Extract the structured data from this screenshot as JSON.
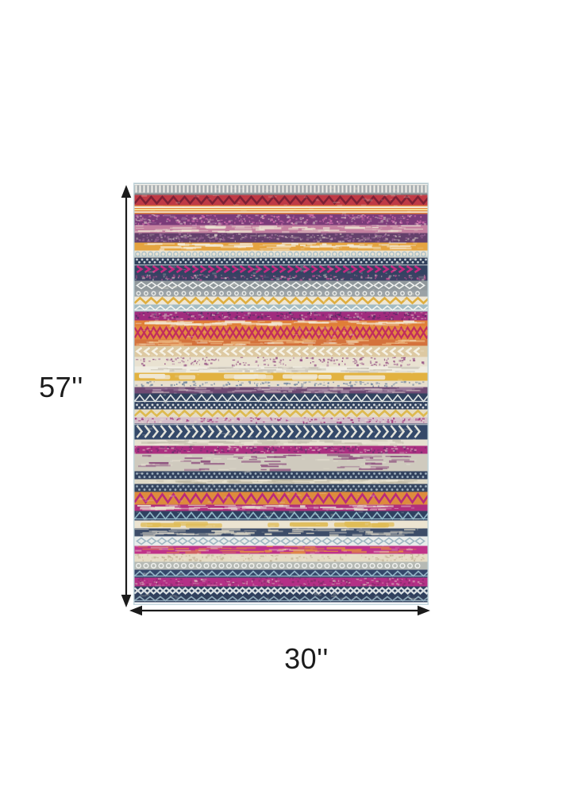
{
  "page": {
    "background": "#ffffff"
  },
  "diagram": {
    "height_label": "57''",
    "width_label": "30''",
    "arrow_color": "#1b1b1b",
    "label_color": "#1b1b1b"
  },
  "rug": {
    "description": "multicolor distressed bohemian tribal striped area rug, portrait orientation",
    "edge_color": "#c3d6dc",
    "stripes": [
      {
        "h": 14,
        "b": "#a8aeb1",
        "p": "fringe",
        "c": "#f3f1ea"
      },
      {
        "h": 13,
        "b": "#bf3a45",
        "p": "zigzag",
        "c": "#7c2135"
      },
      {
        "h": 11,
        "b": "#e0843e",
        "p": "hstripes",
        "c": "#f3e9d6"
      },
      {
        "h": 14,
        "b": "#7b3c7a",
        "p": "speckle",
        "c": "#c869a7"
      },
      {
        "h": 10,
        "b": "#c480a0",
        "p": "streak",
        "c": "#ece2d2"
      },
      {
        "h": 12,
        "b": "#64406b",
        "p": "speckle",
        "c": "#946191"
      },
      {
        "h": 10,
        "b": "#e5a440",
        "p": "streak",
        "c": "#f4ebd8"
      },
      {
        "h": 9,
        "b": "#e8e2d4",
        "p": "lace",
        "c": "#a9bfc7"
      },
      {
        "h": 8,
        "b": "#2f3f5a",
        "p": "dots",
        "c": "#ccd3d9"
      },
      {
        "h": 13,
        "b": "#334362",
        "p": "chevR",
        "c": "#c32a80"
      },
      {
        "h": 8,
        "b": "#3c4164",
        "p": "speckle",
        "c": "#b04e8e"
      },
      {
        "h": 12,
        "b": "#90989c",
        "p": "diamond",
        "c": "#eef0ee"
      },
      {
        "h": 8,
        "b": "#9ba2a6",
        "p": "circ",
        "c": "#e9ebe8"
      },
      {
        "h": 10,
        "b": "#efe7d5",
        "p": "zigzag",
        "c": "#dfae3f"
      },
      {
        "h": 9,
        "b": "#a4bcc3",
        "p": "tri",
        "c": "#f0f2ee"
      },
      {
        "h": 11,
        "b": "#a02c7e",
        "p": "speckle",
        "c": "#5c2a66"
      },
      {
        "h": 7,
        "b": "#e07e37",
        "p": "streak",
        "c": "#f2e8d3"
      },
      {
        "h": 17,
        "b": "#e2883f",
        "p": "xlat",
        "c": "#c22d5e"
      },
      {
        "h": 8,
        "b": "#d4723c",
        "p": "streak",
        "c": "#ecb57c"
      },
      {
        "h": 14,
        "b": "#ddc9a2",
        "p": "chevL",
        "c": "#f6f2e6"
      },
      {
        "h": 12,
        "b": "#e9e2d1",
        "p": "speckle",
        "c": "#9b5c8a"
      },
      {
        "h": 8,
        "b": "#efece1",
        "p": "streak",
        "c": "#c9c3b6"
      },
      {
        "h": 10,
        "b": "#e2b240",
        "p": "patch",
        "c": "#f0e8d4"
      },
      {
        "h": 8,
        "b": "#e7dfce",
        "p": "speckle",
        "c": "#7b8ca0"
      },
      {
        "h": 8,
        "b": "#6f4a73",
        "p": "streak",
        "c": "#a98ca7"
      },
      {
        "h": 12,
        "b": "#31425f",
        "p": "tri",
        "c": "#dfe3e1"
      },
      {
        "h": 8,
        "b": "#334460",
        "p": "dots",
        "c": "#d6dadb"
      },
      {
        "h": 10,
        "b": "#e6dcc4",
        "p": "zigzag",
        "c": "#ddb94e"
      },
      {
        "h": 8,
        "b": "#d5bfca",
        "p": "speckle",
        "c": "#a03a7d"
      },
      {
        "h": 20,
        "b": "#34496a",
        "p": "chevR",
        "c": "#e2e2da"
      },
      {
        "h": 8,
        "b": "#e6e0d0",
        "p": "streak",
        "c": "#c8c1b1"
      },
      {
        "h": 10,
        "b": "#ab2f80",
        "p": "speckle",
        "c": "#6e2f6c"
      },
      {
        "h": 22,
        "b": "#cfcabe",
        "p": "streak",
        "c": "#8a4a7b"
      },
      {
        "h": 10,
        "b": "#31415e",
        "p": "dots",
        "c": "#9fb1be"
      },
      {
        "h": 6,
        "b": "#ded9c7",
        "p": "streak",
        "c": "#c2bca8"
      },
      {
        "h": 10,
        "b": "#35455f",
        "p": "dots",
        "c": "#a0b1be"
      },
      {
        "h": 16,
        "b": "#dd8b3d",
        "p": "zigzag",
        "c": "#b92a7b"
      },
      {
        "h": 8,
        "b": "#b02f7d",
        "p": "streak",
        "c": "#e6ddcb"
      },
      {
        "h": 12,
        "b": "#2f4161",
        "p": "tri",
        "c": "#90b5c5"
      },
      {
        "h": 10,
        "b": "#ece4d1",
        "p": "patch",
        "c": "#dfbb55"
      },
      {
        "h": 10,
        "b": "#3d4d69",
        "p": "streak",
        "c": "#d8d3c3"
      },
      {
        "h": 12,
        "b": "#e9ecea",
        "p": "diamond",
        "c": "#9fb6c2"
      },
      {
        "h": 10,
        "b": "#c03389",
        "p": "streak",
        "c": "#e08a45"
      },
      {
        "h": 10,
        "b": "#e5dcc5",
        "p": "speckle",
        "c": "#c5b79b"
      },
      {
        "h": 10,
        "b": "#b6bab5",
        "p": "circ",
        "c": "#f0f1ee"
      },
      {
        "h": 10,
        "b": "#35476a",
        "p": "tri",
        "c": "#93b3c6"
      },
      {
        "h": 11,
        "b": "#b43086",
        "p": "speckle",
        "c": "#8b2c6e"
      },
      {
        "h": 11,
        "b": "#2e3f5e",
        "p": "xlat",
        "c": "#d9dee1"
      },
      {
        "h": 9,
        "b": "#32405c",
        "p": "tri",
        "c": "#8fa9b9"
      }
    ]
  }
}
